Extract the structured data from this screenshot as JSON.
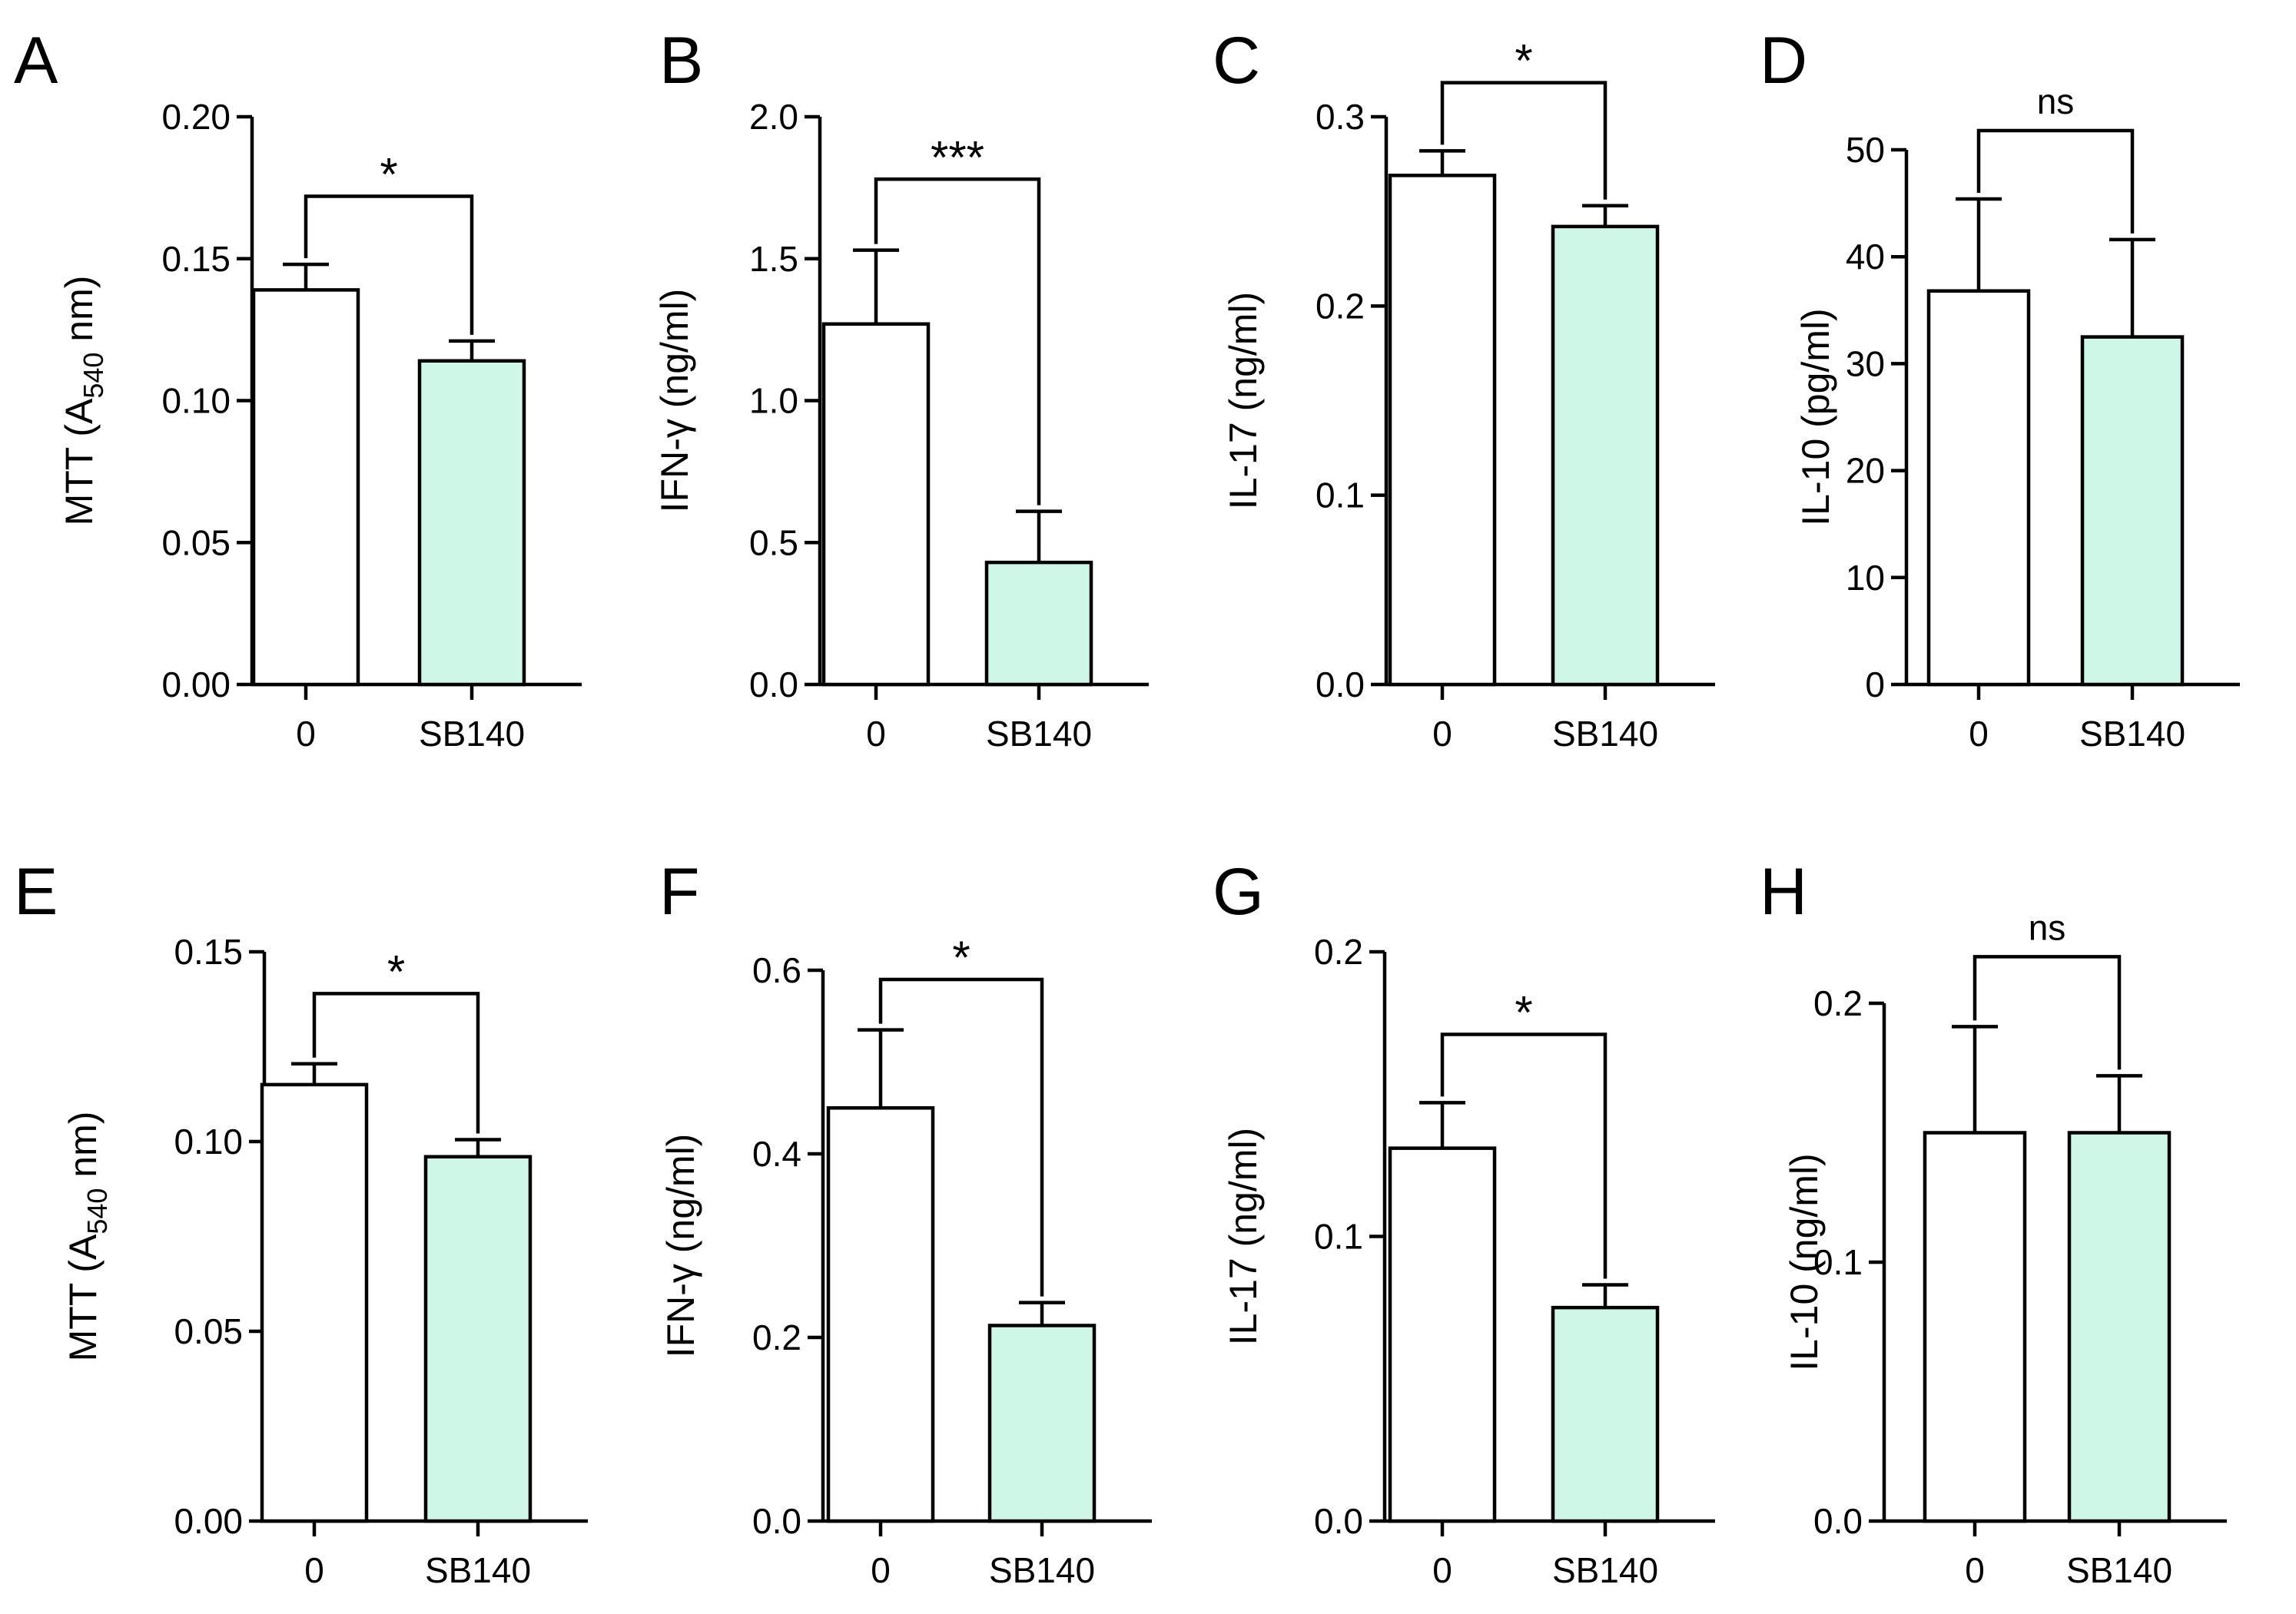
{
  "colors": {
    "control_bar": "#ffffff",
    "treated_bar": "#cff7e8",
    "stroke": "#000000"
  },
  "chart_data": [
    {
      "panel": "A",
      "type": "bar",
      "categories": [
        "0",
        "SB140"
      ],
      "values": [
        0.139,
        0.114
      ],
      "errors": [
        0.009,
        0.007
      ],
      "ylabel_main": "MTT (A",
      "ylabel_sub": "540",
      "ylabel_tail": " nm)",
      "ylim": [
        0,
        0.2
      ],
      "yticks": [
        0,
        0.05,
        0.1,
        0.15,
        0.2
      ],
      "ytick_labels": [
        "0.00",
        "0.05",
        "0.10",
        "0.15",
        "0.20"
      ],
      "significance": "*",
      "bracket_y": 0.172
    },
    {
      "panel": "B",
      "type": "bar",
      "categories": [
        "0",
        "SB140"
      ],
      "values": [
        1.27,
        0.43
      ],
      "errors": [
        0.26,
        0.18
      ],
      "ylabel_main": "IFN-γ (ng/ml)",
      "ylabel_sub": "",
      "ylabel_tail": "",
      "ylim": [
        0,
        2
      ],
      "yticks": [
        0,
        0.5,
        1,
        1.5,
        2
      ],
      "ytick_labels": [
        "0.0",
        "0.5",
        "1.0",
        "1.5",
        "2.0"
      ],
      "significance": "***",
      "bracket_y": 1.78
    },
    {
      "panel": "C",
      "type": "bar",
      "categories": [
        "0",
        "SB140"
      ],
      "values": [
        0.269,
        0.242
      ],
      "errors": [
        0.013,
        0.011
      ],
      "ylabel_main": "IL-17 (ng/ml)",
      "ylabel_sub": "",
      "ylabel_tail": "",
      "ylim": [
        0,
        0.3
      ],
      "yticks": [
        0,
        0.1,
        0.2,
        0.3
      ],
      "ytick_labels": [
        "0.0",
        "0.1",
        "0.2",
        "0.3"
      ],
      "significance": "*",
      "bracket_y": 0.318
    },
    {
      "panel": "D",
      "type": "bar",
      "categories": [
        "0",
        "SB140"
      ],
      "values": [
        36.8,
        32.5
      ],
      "errors": [
        8.6,
        9.1
      ],
      "ylabel_main": "IL-10 (pg/ml)",
      "ylabel_sub": "",
      "ylabel_tail": "",
      "ylim": [
        0,
        50
      ],
      "yticks": [
        0,
        10,
        20,
        30,
        40,
        50
      ],
      "ytick_labels": [
        "0",
        "10",
        "20",
        "30",
        "40",
        "50"
      ],
      "significance": "ns",
      "bracket_y": 51.8
    },
    {
      "panel": "E",
      "type": "bar",
      "categories": [
        "0",
        "SB140"
      ],
      "values": [
        0.115,
        0.096
      ],
      "errors": [
        0.0055,
        0.0045
      ],
      "ylabel_main": "MTT (A",
      "ylabel_sub": "540",
      "ylabel_tail": " nm)",
      "ylim": [
        0,
        0.15
      ],
      "yticks": [
        0,
        0.05,
        0.1,
        0.15
      ],
      "ytick_labels": [
        "0.00",
        "0.05",
        "0.10",
        "0.15"
      ],
      "significance": "*",
      "bracket_y": 0.139
    },
    {
      "panel": "F",
      "type": "bar",
      "categories": [
        "0",
        "SB140"
      ],
      "values": [
        0.45,
        0.213
      ],
      "errors": [
        0.085,
        0.025
      ],
      "ylabel_main": "IFN-γ (ng/ml)",
      "ylabel_sub": "",
      "ylabel_tail": "",
      "ylim": [
        0,
        0.6
      ],
      "yticks": [
        0,
        0.2,
        0.4,
        0.6
      ],
      "ytick_labels": [
        "0.0",
        "0.2",
        "0.4",
        "0.6"
      ],
      "significance": "*",
      "bracket_y": 0.59
    },
    {
      "panel": "G",
      "type": "bar",
      "categories": [
        "0",
        "SB140"
      ],
      "values": [
        0.131,
        0.075
      ],
      "errors": [
        0.016,
        0.008
      ],
      "ylabel_main": "IL-17 (ng/ml)",
      "ylabel_sub": "",
      "ylabel_tail": "",
      "ylim": [
        0,
        0.2
      ],
      "yticks": [
        0,
        0.1,
        0.2
      ],
      "ytick_labels": [
        "0.0",
        "0.1",
        "0.2"
      ],
      "significance": "*",
      "bracket_y": 0.171
    },
    {
      "panel": "H",
      "type": "bar",
      "categories": [
        "0",
        "SB140"
      ],
      "values": [
        0.15,
        0.15
      ],
      "errors": [
        0.041,
        0.022
      ],
      "ylabel_main": "IL-10 (ng/ml)",
      "ylabel_sub": "",
      "ylabel_tail": "",
      "ylim": [
        0,
        0.2
      ],
      "yticks": [
        0,
        0.1,
        0.2
      ],
      "ytick_labels": [
        "0.0",
        "0.1",
        "0.2"
      ],
      "significance": "ns",
      "bracket_y": 0.218
    }
  ]
}
